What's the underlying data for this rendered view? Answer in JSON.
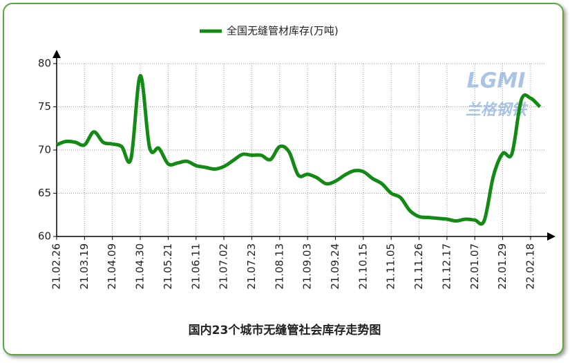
{
  "chart_data": {
    "type": "line",
    "title": "国内23个城市无缝管社会库存走势图",
    "watermark": "LGMI",
    "watermark_text": "兰格钢铁",
    "categories": [
      "21.02.26",
      null,
      null,
      "21.03.19",
      null,
      null,
      "21.04.09",
      null,
      null,
      "21.04.30",
      null,
      null,
      "21.05.21",
      null,
      null,
      "21.06.11",
      null,
      null,
      "21.07.02",
      null,
      null,
      "21.07.23",
      null,
      null,
      "21.08.13",
      null,
      null,
      "21.09.03",
      null,
      null,
      "21.09.24",
      null,
      null,
      "21.10.15",
      null,
      null,
      "21.11.05",
      null,
      null,
      "21.11.26",
      null,
      null,
      "21.12.17",
      null,
      null,
      "22.01.07",
      null,
      null,
      "22.01.29",
      null,
      null,
      "22.02.18",
      null
    ],
    "series": [
      {
        "name": "全国无缝管材库存(万吨)",
        "color": "#138a13",
        "values": [
          70.6,
          71.0,
          70.9,
          70.6,
          72.1,
          70.9,
          70.7,
          70.4,
          69.0,
          78.6,
          70.3,
          70.2,
          68.4,
          68.5,
          68.7,
          68.2,
          68.0,
          67.8,
          68.1,
          68.8,
          69.5,
          69.4,
          69.4,
          68.9,
          70.4,
          69.8,
          67.1,
          67.2,
          66.8,
          66.1,
          66.4,
          67.1,
          67.6,
          67.5,
          66.7,
          66.1,
          65.0,
          64.5,
          63.0,
          62.3,
          62.2,
          62.1,
          62.0,
          61.8,
          62.0,
          61.9,
          61.8,
          67.0,
          69.6,
          69.6,
          75.8,
          76.0,
          75.0
        ]
      }
    ],
    "ylim": [
      60,
      80
    ],
    "yticks": [
      60,
      65,
      70,
      75,
      80
    ],
    "grid": true,
    "legend": "top"
  }
}
